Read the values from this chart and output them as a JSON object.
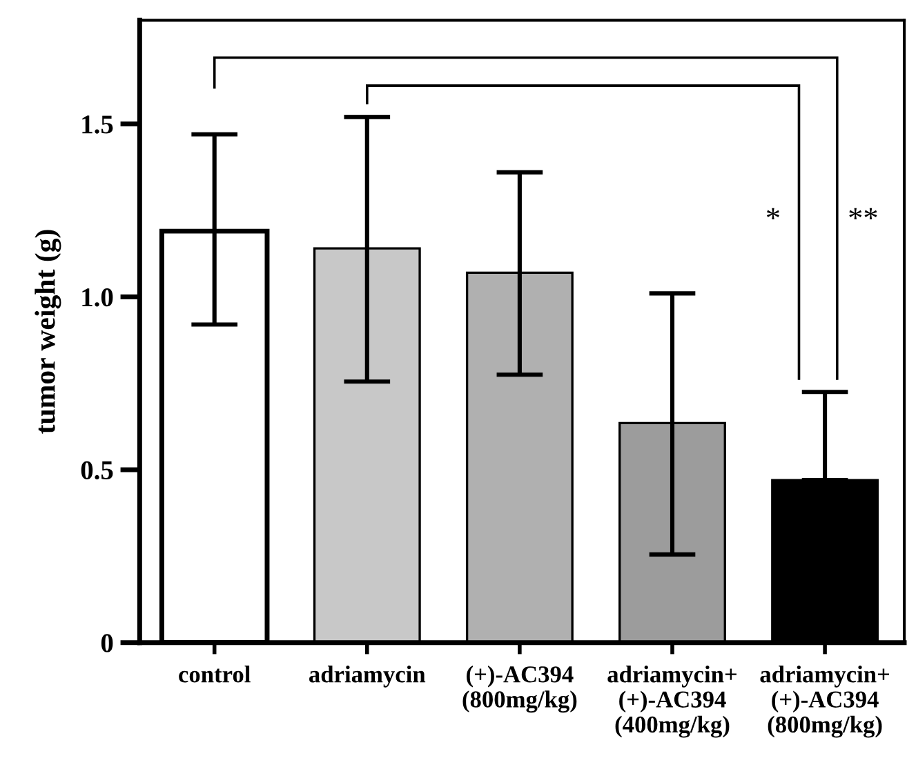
{
  "chart_data": {
    "type": "bar",
    "ylabel": "tumor weight (g)",
    "categories": [
      "control",
      "adriamycin",
      "(+)-AC394\n(800mg/kg)",
      "adriamycin+\n(+)-AC394\n(400mg/kg)",
      "adriamycin+\n(+)-AC394\n(800mg/kg)"
    ],
    "values": [
      1.19,
      1.14,
      1.07,
      0.635,
      0.47
    ],
    "colors": [
      "#ffffff",
      "#c8c8c8",
      "#b0b0b0",
      "#9c9c9c",
      "#000000"
    ],
    "errors": [
      [
        0.92,
        1.47
      ],
      [
        0.755,
        1.52
      ],
      [
        0.775,
        1.36
      ],
      [
        0.255,
        1.01
      ],
      [
        0.47,
        0.725
      ]
    ],
    "ylim": [
      0,
      1.8
    ],
    "yticks": [
      0,
      0.5,
      {
        "value": 1,
        "label": "1.0"
      },
      1.5
    ],
    "annotations": [
      "*",
      "**"
    ],
    "grid": false
  }
}
